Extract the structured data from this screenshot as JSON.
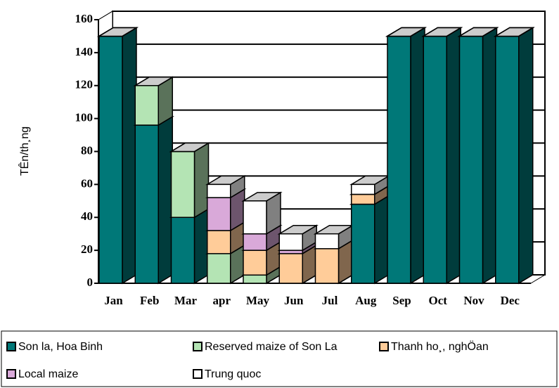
{
  "chart_data": {
    "type": "bar3d_stacked",
    "y_label": "TÊn/th¸ng",
    "categories": [
      "Jan",
      "Feb",
      "Mar",
      "apr",
      "May",
      "Jun",
      "Jul",
      "Aug",
      "Sep",
      "Oct",
      "Nov",
      "Dec"
    ],
    "series": [
      {
        "name": "Son la, Hoa Binh",
        "color": "#007878",
        "values": [
          150,
          96,
          40,
          0,
          0,
          0,
          0,
          48,
          150,
          150,
          150,
          150
        ]
      },
      {
        "name": "Reserved maize of Son La",
        "color": "#b4e4b4",
        "values": [
          0,
          24,
          40,
          18,
          5,
          0,
          0,
          0,
          0,
          0,
          0,
          0
        ]
      },
      {
        "name": "Thanh ho¸, nghÖan",
        "color": "#ffcc99",
        "values": [
          0,
          0,
          0,
          14,
          15,
          18,
          21,
          6,
          0,
          0,
          0,
          0
        ]
      },
      {
        "name": "Local maize",
        "color": "#d9a9d9",
        "values": [
          0,
          0,
          0,
          20,
          10,
          2,
          0,
          0,
          0,
          0,
          0,
          0
        ]
      },
      {
        "name": "Trung quoc",
        "color": "#ffffff",
        "values": [
          0,
          0,
          0,
          8,
          20,
          10,
          9,
          6,
          0,
          0,
          0,
          0
        ]
      }
    ],
    "ylim": [
      0,
      160
    ],
    "yticks": [
      0,
      20,
      40,
      60,
      80,
      100,
      120,
      140,
      160
    ],
    "grid": true,
    "legend": "bottom"
  }
}
